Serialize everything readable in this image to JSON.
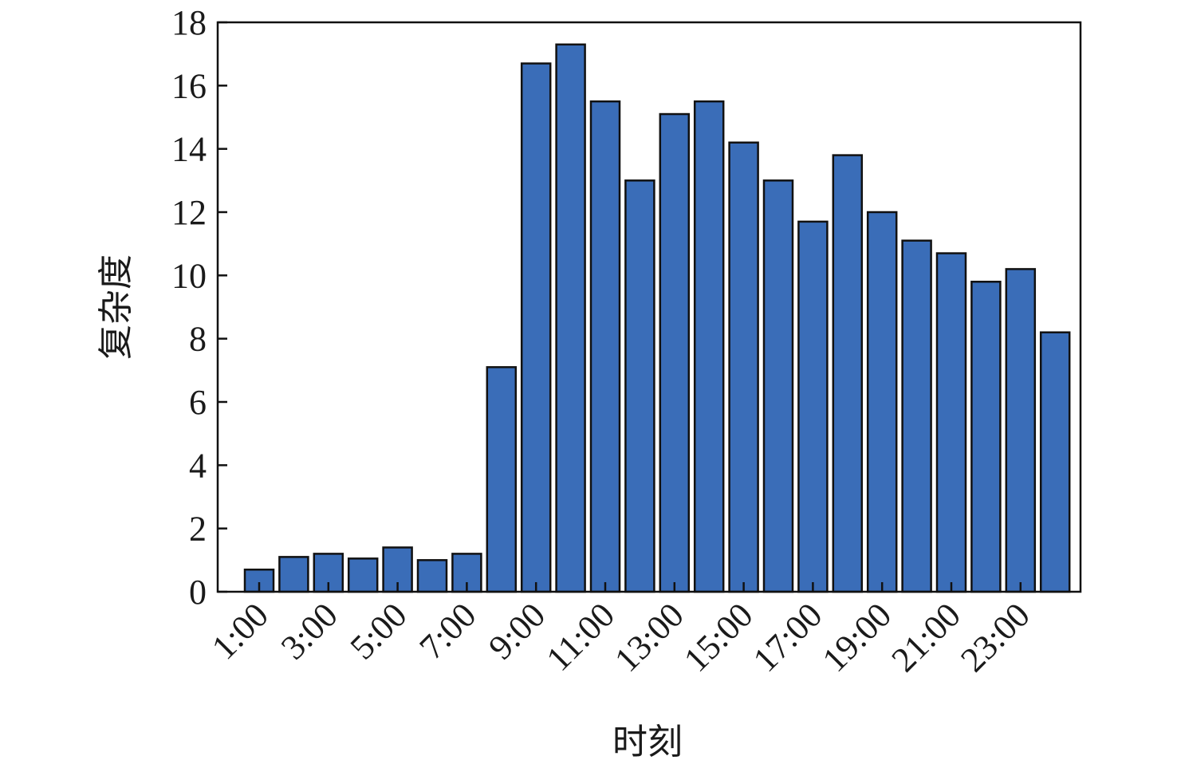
{
  "chart_data": {
    "type": "bar",
    "title": "",
    "xlabel": "时刻",
    "ylabel": "复杂度",
    "categories": [
      "1:00",
      "2:00",
      "3:00",
      "4:00",
      "5:00",
      "6:00",
      "7:00",
      "8:00",
      "9:00",
      "10:00",
      "11:00",
      "12:00",
      "13:00",
      "14:00",
      "15:00",
      "16:00",
      "17:00",
      "18:00",
      "19:00",
      "20:00",
      "21:00",
      "22:00",
      "23:00",
      "24:00"
    ],
    "x_tick_labels": [
      "1:00",
      "3:00",
      "5:00",
      "7:00",
      "9:00",
      "11:00",
      "13:00",
      "15:00",
      "17:00",
      "19:00",
      "21:00",
      "23:00"
    ],
    "values": [
      0.7,
      1.1,
      1.2,
      1.05,
      1.4,
      1.0,
      1.2,
      7.1,
      16.7,
      17.3,
      15.5,
      13.0,
      15.1,
      15.5,
      14.2,
      13.0,
      11.7,
      13.8,
      12.0,
      11.1,
      10.7,
      9.8,
      10.2,
      8.2
    ],
    "ylim": [
      0,
      18
    ],
    "yticks": [
      0,
      2,
      4,
      6,
      8,
      10,
      12,
      14,
      16,
      18
    ],
    "grid": false,
    "legend": "none",
    "bar_color": "#3a6db8"
  }
}
